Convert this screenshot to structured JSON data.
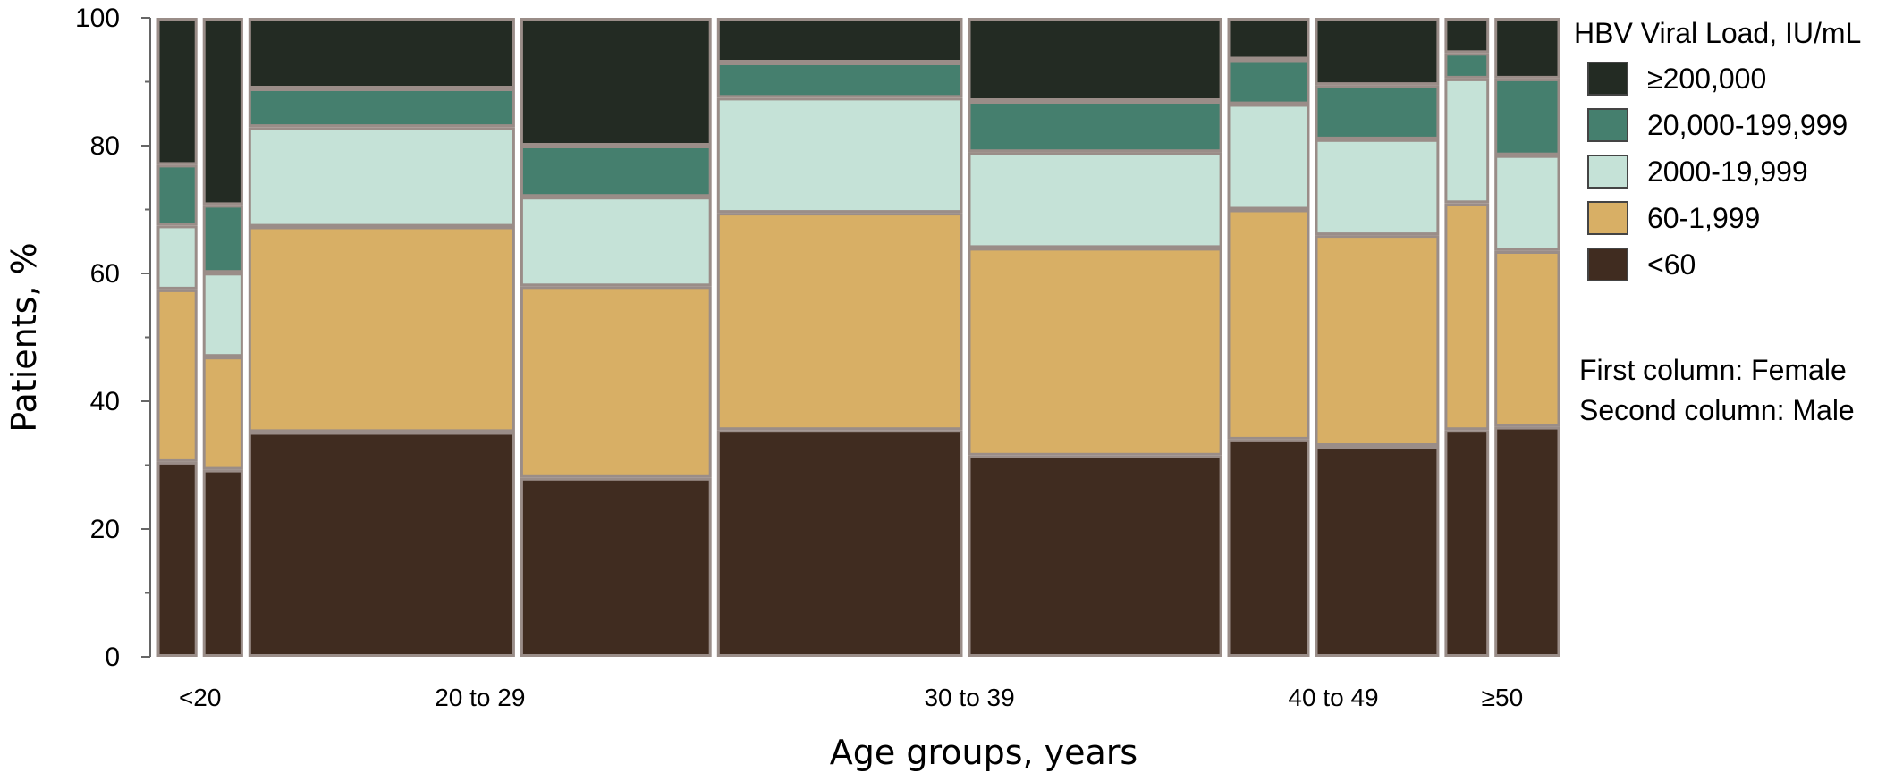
{
  "chart_data": {
    "type": "bar",
    "subtype": "mosaic (variable-width 100% stacked columns)",
    "xlabel": "Age groups, years",
    "ylabel": "Patients, %",
    "ylim": [
      0,
      100
    ],
    "yticks": [
      0,
      20,
      40,
      60,
      80,
      100
    ],
    "grid": false,
    "legend_position": "right",
    "legend_title": "HBV Viral Load, IU/mL",
    "categories": [
      "<20",
      "20 to 29",
      "30 to 39",
      "40 to 49",
      "≥50"
    ],
    "note_lines": [
      "First column: Female",
      "Second column: Male"
    ],
    "series": [
      {
        "name": "<60",
        "color": "#402c20"
      },
      {
        "name": "60-1,999",
        "color": "#d8af65"
      },
      {
        "name": "2000-19,999",
        "color": "#c5e2d7"
      },
      {
        "name": "20,000-199,999",
        "color": "#457f6e"
      },
      {
        "name": "≥200,000",
        "color": "#232b23"
      }
    ],
    "legend_order": [
      "≥200,000",
      "20,000-199,999",
      "2000-19,999",
      "60-1,999",
      "<60"
    ],
    "columns": [
      {
        "category": "<20",
        "sex": "Female",
        "relative_width": 0.9,
        "values": [
          30.5,
          27.0,
          10.0,
          9.5,
          23.0
        ]
      },
      {
        "category": "<20",
        "sex": "Male",
        "relative_width": 0.9,
        "values": [
          29.0,
          17.5,
          13.0,
          10.5,
          29.0
        ]
      },
      {
        "category": "20 to 29",
        "sex": "Female",
        "relative_width": 6.3,
        "values": [
          35.0,
          32.0,
          15.5,
          6.0,
          11.0
        ]
      },
      {
        "category": "20 to 29",
        "sex": "Male",
        "relative_width": 4.5,
        "values": [
          28.0,
          30.0,
          14.0,
          8.0,
          20.0
        ]
      },
      {
        "category": "30 to 39",
        "sex": "Female",
        "relative_width": 5.8,
        "values": [
          35.5,
          34.0,
          18.0,
          5.5,
          7.0
        ]
      },
      {
        "category": "30 to 39",
        "sex": "Male",
        "relative_width": 6.0,
        "values": [
          31.5,
          32.5,
          15.0,
          8.0,
          13.0
        ]
      },
      {
        "category": "40 to 49",
        "sex": "Female",
        "relative_width": 1.9,
        "values": [
          34.0,
          36.0,
          16.5,
          7.0,
          6.5
        ]
      },
      {
        "category": "40 to 49",
        "sex": "Male",
        "relative_width": 2.9,
        "values": [
          33.0,
          33.0,
          15.0,
          8.5,
          10.5
        ]
      },
      {
        "category": "≥50",
        "sex": "Female",
        "relative_width": 1.0,
        "values": [
          35.5,
          35.5,
          19.5,
          4.0,
          5.5
        ]
      },
      {
        "category": "≥50",
        "sex": "Male",
        "relative_width": 1.5,
        "values": [
          36.0,
          27.5,
          15.0,
          12.0,
          9.5
        ]
      }
    ]
  }
}
